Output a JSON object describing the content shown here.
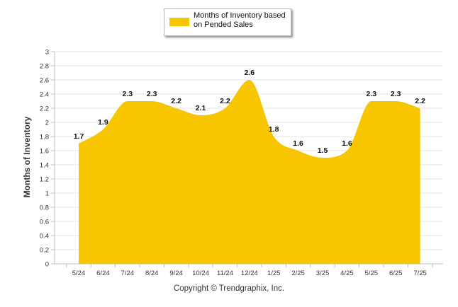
{
  "legend": {
    "label": "Months of Inventory based on Pended Sales"
  },
  "footer": {
    "copyright": "Copyright © Trendgraphix, Inc."
  },
  "colors": {
    "area": "#f7c600",
    "grid": "#e6e6e6",
    "axis": "#c0c0c0"
  },
  "chart_data": {
    "type": "area",
    "title": "",
    "xlabel": "",
    "ylabel": "Months of Inventory",
    "categories": [
      "5/24",
      "6/24",
      "7/24",
      "8/24",
      "9/24",
      "10/24",
      "11/24",
      "12/24",
      "1/25",
      "2/25",
      "3/25",
      "4/25",
      "5/25",
      "6/25",
      "7/25"
    ],
    "series": [
      {
        "name": "Months of Inventory based on Pended Sales",
        "values": [
          1.7,
          1.9,
          2.3,
          2.3,
          2.2,
          2.1,
          2.2,
          2.6,
          1.8,
          1.6,
          1.5,
          1.6,
          2.3,
          2.3,
          2.2
        ]
      }
    ],
    "yticks": [
      "0",
      "0.2",
      "0.4",
      "0.6",
      "0.8",
      "1",
      "1.2",
      "1.4",
      "1.6",
      "1.8",
      "2",
      "2.2",
      "2.4",
      "2.6",
      "2.8",
      "3"
    ],
    "ylim": [
      0,
      3
    ],
    "grid": true,
    "legend_position": "top-center",
    "smooth": true
  }
}
